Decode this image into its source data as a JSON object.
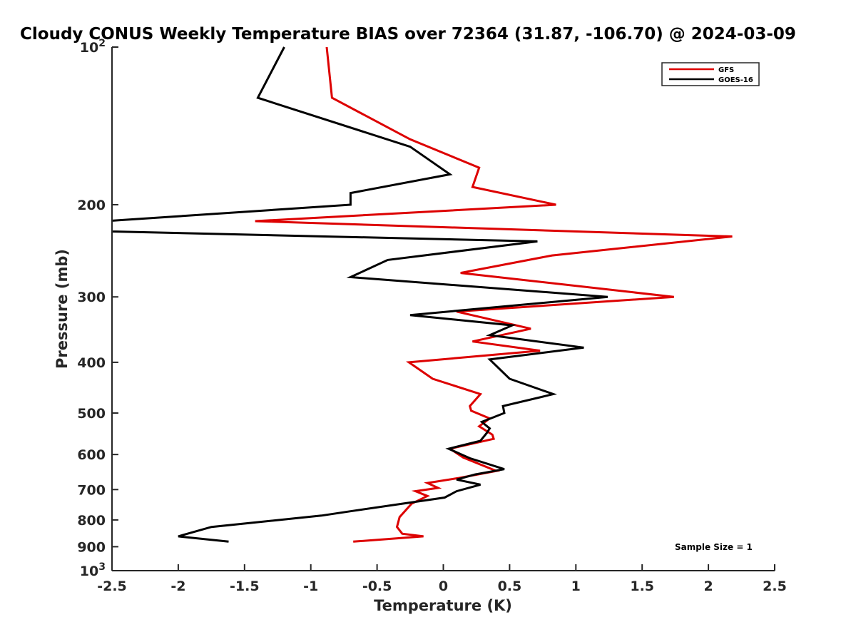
{
  "chart_data": {
    "type": "line",
    "title": "Cloudy CONUS Weekly Temperature BIAS over 72364 (31.87, -106.70) @ 2024-03-09",
    "xlabel": "Temperature (K)",
    "ylabel": "Pressure (mb)",
    "xlim": [
      -2.5,
      2.5
    ],
    "ylim": [
      100,
      1000
    ],
    "y_scale": "log",
    "y_reversed": true,
    "grid": false,
    "legend_position": "top-right",
    "x_ticks": [
      "-2.5",
      "-2",
      "-1.5",
      "-1",
      "-0.5",
      "0",
      "0.5",
      "1",
      "1.5",
      "2",
      "2.5"
    ],
    "y_ticks": [
      {
        "value": 100,
        "label": "10",
        "sup": "2"
      },
      {
        "value": 200,
        "label": "200",
        "sup": ""
      },
      {
        "value": 300,
        "label": "300",
        "sup": ""
      },
      {
        "value": 400,
        "label": "400",
        "sup": ""
      },
      {
        "value": 500,
        "label": "500",
        "sup": ""
      },
      {
        "value": 600,
        "label": "600",
        "sup": ""
      },
      {
        "value": 700,
        "label": "700",
        "sup": ""
      },
      {
        "value": 800,
        "label": "800",
        "sup": ""
      },
      {
        "value": 900,
        "label": "900",
        "sup": ""
      },
      {
        "value": 1000,
        "label": "10",
        "sup": "3"
      }
    ],
    "series": [
      {
        "name": "GFS",
        "color": "#dd0000",
        "points": [
          [
            -0.88,
            100
          ],
          [
            -0.84,
            125
          ],
          [
            -0.25,
            150
          ],
          [
            0.27,
            170
          ],
          [
            0.22,
            185
          ],
          [
            0.85,
            200
          ],
          [
            -1.42,
            215
          ],
          [
            2.18,
            230
          ],
          [
            0.82,
            250
          ],
          [
            0.13,
            270
          ],
          [
            1.74,
            300
          ],
          [
            0.1,
            320
          ],
          [
            0.66,
            345
          ],
          [
            0.22,
            365
          ],
          [
            0.73,
            380
          ],
          [
            -0.26,
            400
          ],
          [
            -0.08,
            430
          ],
          [
            0.28,
            460
          ],
          [
            0.2,
            485
          ],
          [
            0.21,
            495
          ],
          [
            0.35,
            512
          ],
          [
            0.27,
            530
          ],
          [
            0.37,
            550
          ],
          [
            0.38,
            560
          ],
          [
            0.05,
            585
          ],
          [
            0.15,
            608
          ],
          [
            0.4,
            645
          ],
          [
            0.12,
            665
          ],
          [
            -0.12,
            680
          ],
          [
            -0.04,
            695
          ],
          [
            -0.21,
            705
          ],
          [
            -0.12,
            720
          ],
          [
            -0.24,
            745
          ],
          [
            -0.33,
            790
          ],
          [
            -0.35,
            825
          ],
          [
            -0.31,
            850
          ],
          [
            -0.15,
            860
          ],
          [
            -0.68,
            880
          ]
        ]
      },
      {
        "name": "GOES-16",
        "color": "#000000",
        "points": [
          [
            -1.2,
            100
          ],
          [
            -1.4,
            125
          ],
          [
            -0.25,
            155
          ],
          [
            0.05,
            175
          ],
          [
            -0.7,
            190
          ],
          [
            -0.7,
            200
          ],
          [
            -2.55,
            215
          ],
          [
            -2.5,
            225
          ],
          [
            0.71,
            235
          ],
          [
            -0.42,
            255
          ],
          [
            -0.7,
            275
          ],
          [
            1.24,
            300
          ],
          [
            -0.25,
            325
          ],
          [
            0.52,
            340
          ],
          [
            0.35,
            355
          ],
          [
            1.06,
            375
          ],
          [
            0.35,
            395
          ],
          [
            0.5,
            430
          ],
          [
            0.83,
            460
          ],
          [
            0.45,
            485
          ],
          [
            0.46,
            500
          ],
          [
            0.29,
            520
          ],
          [
            0.35,
            535
          ],
          [
            0.33,
            545
          ],
          [
            0.28,
            565
          ],
          [
            0.04,
            585
          ],
          [
            0.2,
            610
          ],
          [
            0.46,
            640
          ],
          [
            0.24,
            655
          ],
          [
            0.1,
            670
          ],
          [
            0.28,
            685
          ],
          [
            0.1,
            705
          ],
          [
            0.01,
            725
          ],
          [
            -0.7,
            770
          ],
          [
            -0.92,
            785
          ],
          [
            -1.75,
            825
          ],
          [
            -2.0,
            860
          ],
          [
            -1.62,
            880
          ]
        ]
      }
    ],
    "annotation": "Sample Size = 1"
  }
}
